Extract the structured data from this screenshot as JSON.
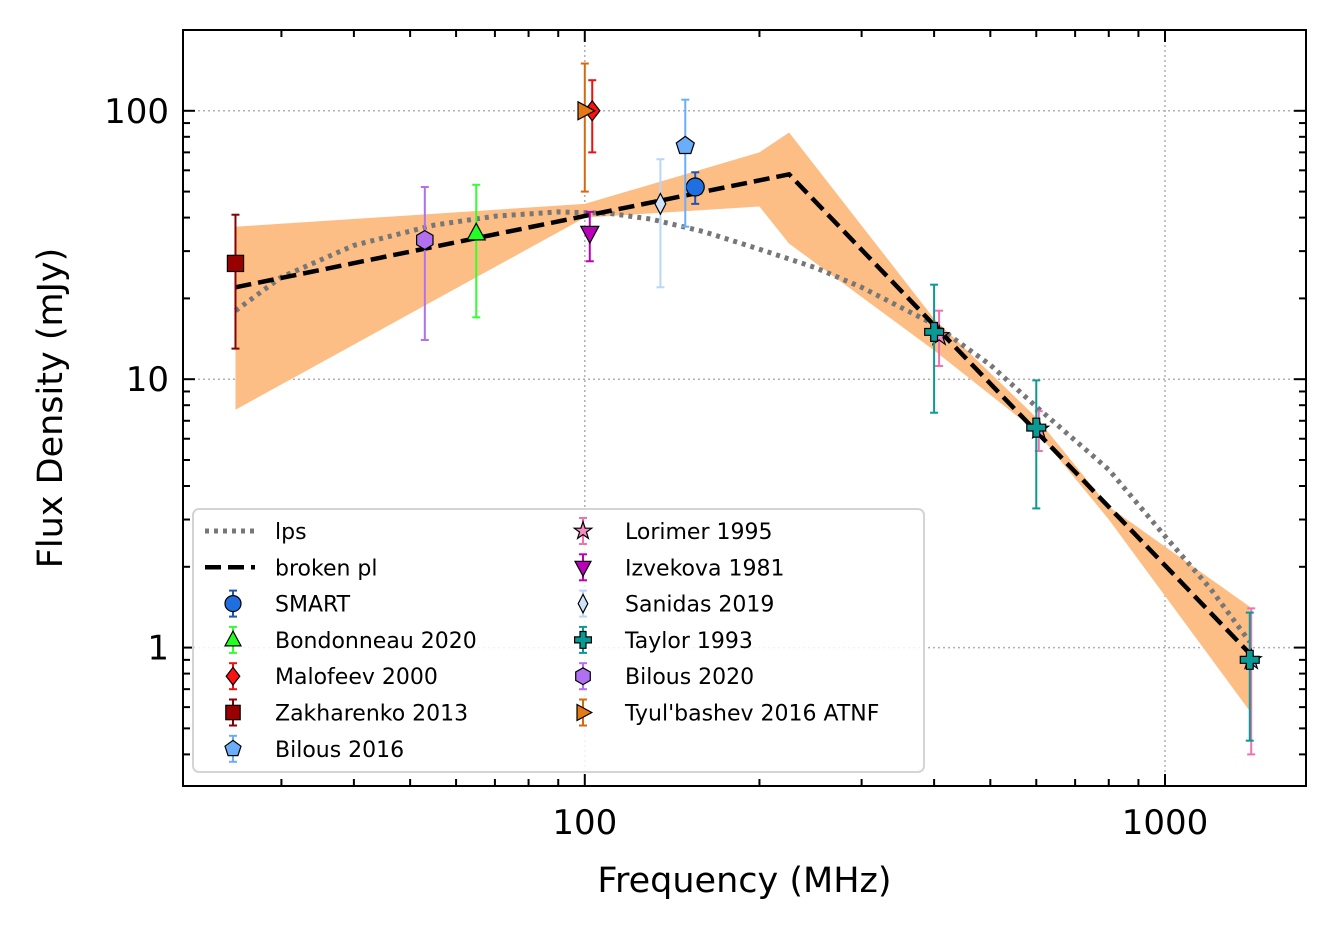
{
  "chart_data": {
    "type": "scatter",
    "xlabel": "Frequency (MHz)",
    "ylabel": "Flux Density (mJy)",
    "xscale": "log",
    "yscale": "log",
    "xlim": [
      20.3,
      1750
    ],
    "ylim": [
      0.305,
      200
    ],
    "grid": true,
    "legend": "lower-left",
    "x_ticks": [
      {
        "v": 100,
        "label": "100"
      },
      {
        "v": 1000,
        "label": "1000"
      }
    ],
    "y_ticks": [
      {
        "v": 1,
        "label": "1"
      },
      {
        "v": 10,
        "label": "10"
      },
      {
        "v": 100,
        "label": "100"
      }
    ],
    "models": [
      {
        "name": "lps",
        "style": "dotted",
        "color": "#777777",
        "x": [
          25,
          30,
          40,
          55,
          70,
          90,
          110,
          130,
          160,
          200,
          250,
          300,
          400,
          500,
          600,
          800,
          1000,
          1200,
          1400
        ],
        "y": [
          18,
          24,
          31.5,
          37.5,
          40.5,
          42,
          41.5,
          39.5,
          35.5,
          30.5,
          26,
          22,
          16,
          11.3,
          7.9,
          4.6,
          2.6,
          1.65,
          1.05
        ]
      },
      {
        "name": "broken pl",
        "style": "dashed",
        "color": "#000000",
        "x": [
          25,
          225,
          1400
        ],
        "y": [
          22,
          58,
          0.95
        ]
      }
    ],
    "band": {
      "color": "#fdbe85",
      "x": [
        25,
        100,
        200,
        225,
        400,
        600,
        800,
        1400
      ],
      "upper": [
        37,
        45,
        70,
        83,
        16.8,
        7.2,
        3.35,
        1.42
      ],
      "lower": [
        7.7,
        40,
        44,
        32,
        12.8,
        6.4,
        3,
        0.58
      ]
    },
    "series": [
      {
        "name": "SMART",
        "marker": "circle",
        "color": "#1f6fe0",
        "ecolor": "#1f55b5",
        "points": [
          {
            "x": 155,
            "y": 52,
            "lo": 45,
            "hi": 59
          }
        ]
      },
      {
        "name": "Bondonneau 2020",
        "marker": "triangle-up",
        "color": "#22ff22",
        "ecolor": "#33ff33",
        "points": [
          {
            "x": 65,
            "y": 35,
            "lo": 17,
            "hi": 53
          }
        ]
      },
      {
        "name": "Malofeev 2000",
        "marker": "diamond",
        "color": "#ff1010",
        "ecolor": "#ee1111",
        "points": [
          {
            "x": 103,
            "y": 100,
            "lo": 70,
            "hi": 130
          }
        ]
      },
      {
        "name": "Zakharenko 2013",
        "marker": "square",
        "color": "#990000",
        "ecolor": "#880000",
        "points": [
          {
            "x": 25,
            "y": 27,
            "lo": 13,
            "hi": 41
          }
        ]
      },
      {
        "name": "Bilous 2016",
        "marker": "pentagon",
        "color": "#6aaefa",
        "ecolor": "#6aaefa",
        "points": [
          {
            "x": 149,
            "y": 74,
            "lo": 37,
            "hi": 110
          }
        ]
      },
      {
        "name": "Lorimer 1995",
        "marker": "star",
        "color": "#f58cc0",
        "ecolor": "#f070b0",
        "points": [
          {
            "x": 408,
            "y": 14.5,
            "lo": 11.2,
            "hi": 18
          },
          {
            "x": 606,
            "y": 6.5,
            "lo": 5.4,
            "hi": 7.6
          },
          {
            "x": 1408,
            "y": 0.9,
            "lo": 0.4,
            "hi": 1.4
          }
        ]
      },
      {
        "name": "Izvekova 1981",
        "marker": "triangle-down",
        "color": "#bb00bb",
        "ecolor": "#bb00bb",
        "points": [
          {
            "x": 102,
            "y": 35,
            "lo": 27.5,
            "hi": 42
          }
        ]
      },
      {
        "name": "Sanidas 2019",
        "marker": "thin-diamond",
        "color": "#cfe3fb",
        "ecolor": "#b8d7f8",
        "points": [
          {
            "x": 135,
            "y": 45,
            "lo": 22,
            "hi": 66
          }
        ]
      },
      {
        "name": "Taylor 1993",
        "marker": "plus",
        "color": "#0a9a96",
        "ecolor": "#0a9a96",
        "points": [
          {
            "x": 400,
            "y": 15,
            "lo": 7.5,
            "hi": 22.5
          },
          {
            "x": 600,
            "y": 6.6,
            "lo": 3.3,
            "hi": 9.9
          },
          {
            "x": 1400,
            "y": 0.9,
            "lo": 0.45,
            "hi": 1.35
          }
        ]
      },
      {
        "name": "Bilous 2020",
        "marker": "hexagon",
        "color": "#b070f0",
        "ecolor": "#b070f0",
        "points": [
          {
            "x": 53,
            "y": 33,
            "lo": 14,
            "hi": 52
          }
        ]
      },
      {
        "name": "Tyul'bashev 2016 ATNF",
        "marker": "triangle-right",
        "color": "#e67a12",
        "ecolor": "#d46a10",
        "points": [
          {
            "x": 100,
            "y": 100,
            "lo": 50,
            "hi": 150
          }
        ]
      }
    ],
    "legend_entries": [
      "lps",
      "broken pl",
      "SMART",
      "Bondonneau 2020",
      "Malofeev 2000",
      "Zakharenko 2013",
      "Bilous 2016",
      "Lorimer 1995",
      "Izvekova 1981",
      "Sanidas 2019",
      "Taylor 1993",
      "Bilous 2020",
      "Tyul'bashev 2016 ATNF"
    ]
  }
}
